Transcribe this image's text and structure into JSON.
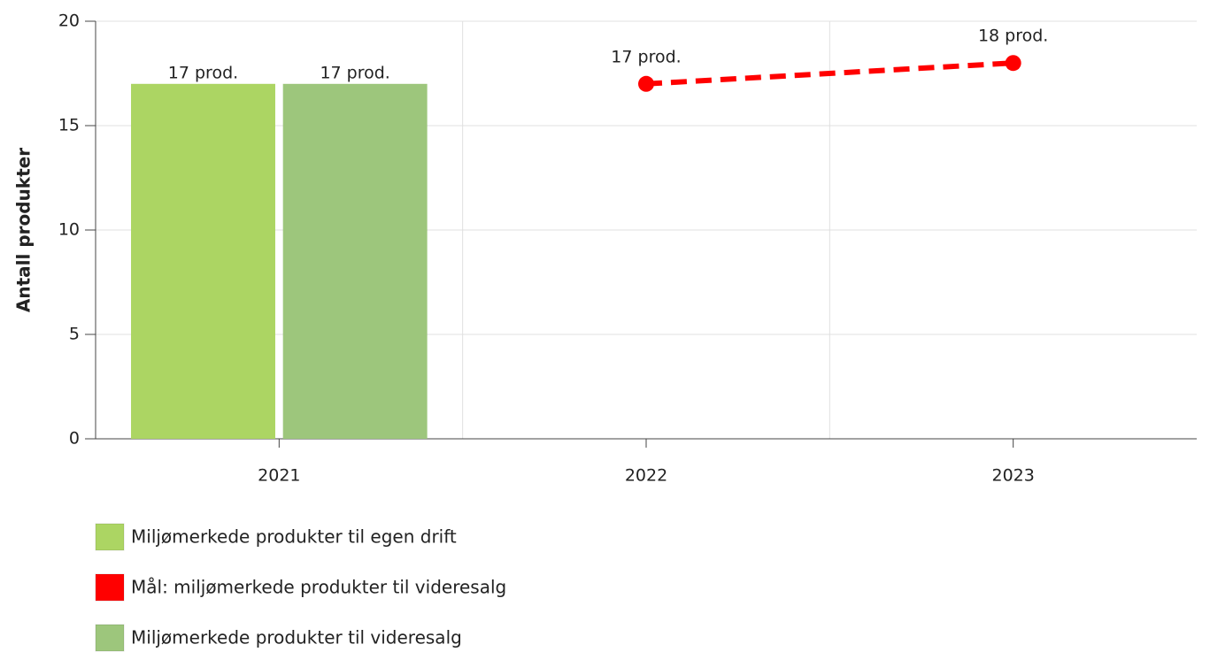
{
  "chart_data": {
    "type": "bar",
    "y_label": "Antall produkter",
    "categories": [
      "2021",
      "2022",
      "2023"
    ],
    "series": [
      {
        "name": "Miljømerkede produkter til egen drift",
        "type": "bar",
        "color": "#acd563",
        "values": [
          17,
          null,
          null
        ],
        "value_labels": [
          "17 prod.",
          null,
          null
        ]
      },
      {
        "name": "Mål: miljømerkede produkter til videresalg",
        "type": "line",
        "color": "#ff0000",
        "values": [
          null,
          17,
          18
        ],
        "value_labels": [
          null,
          "17 prod.",
          "18 prod."
        ]
      },
      {
        "name": "Miljømerkede produkter til videresalg",
        "type": "bar",
        "color": "#9dc67c",
        "values": [
          17,
          null,
          null
        ],
        "value_labels": [
          "17 prod.",
          null,
          null
        ]
      }
    ],
    "ylim": [
      0,
      20
    ],
    "yticks": [
      0,
      5,
      10,
      15,
      20
    ],
    "grid": true,
    "legend": "bottom"
  }
}
